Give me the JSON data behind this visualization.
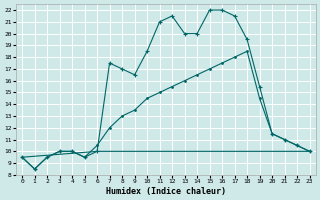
{
  "xlabel": "Humidex (Indice chaleur)",
  "bg_color": "#cfe8e8",
  "grid_color": "#ffffff",
  "line_color": "#006666",
  "xlim": [
    -0.5,
    23.5
  ],
  "ylim": [
    8,
    22.5
  ],
  "xticks": [
    0,
    1,
    2,
    3,
    4,
    5,
    6,
    7,
    8,
    9,
    10,
    11,
    12,
    13,
    14,
    15,
    16,
    17,
    18,
    19,
    20,
    21,
    22,
    23
  ],
  "yticks": [
    8,
    9,
    10,
    11,
    12,
    13,
    14,
    15,
    16,
    17,
    18,
    19,
    20,
    21,
    22
  ],
  "line1_x": [
    0,
    1,
    2,
    3,
    4,
    5,
    6,
    7,
    8,
    9,
    10,
    11,
    12,
    13,
    14,
    15,
    16,
    17,
    18,
    19,
    20,
    21,
    22,
    23
  ],
  "line1_y": [
    9.5,
    8.5,
    9.5,
    10.0,
    10.0,
    9.5,
    10.0,
    17.5,
    17.0,
    16.5,
    18.5,
    21.0,
    21.5,
    20.0,
    20.0,
    22.0,
    22.0,
    21.5,
    19.5,
    15.5,
    11.5,
    11.0,
    10.5,
    10.0
  ],
  "line2_x": [
    0,
    1,
    2,
    3,
    4,
    5,
    6,
    7,
    8,
    9,
    10,
    11,
    12,
    13,
    14,
    15,
    16,
    17,
    18,
    19,
    20,
    21,
    22,
    23
  ],
  "line2_y": [
    9.5,
    8.5,
    9.5,
    10.0,
    10.0,
    9.5,
    10.5,
    12.0,
    13.0,
    13.5,
    14.5,
    15.0,
    15.5,
    16.0,
    16.5,
    17.0,
    17.5,
    18.0,
    18.5,
    14.5,
    11.5,
    11.0,
    10.5,
    10.0
  ],
  "line3_x": [
    0,
    6,
    18,
    23
  ],
  "line3_y": [
    9.5,
    10.0,
    10.0,
    10.0
  ]
}
